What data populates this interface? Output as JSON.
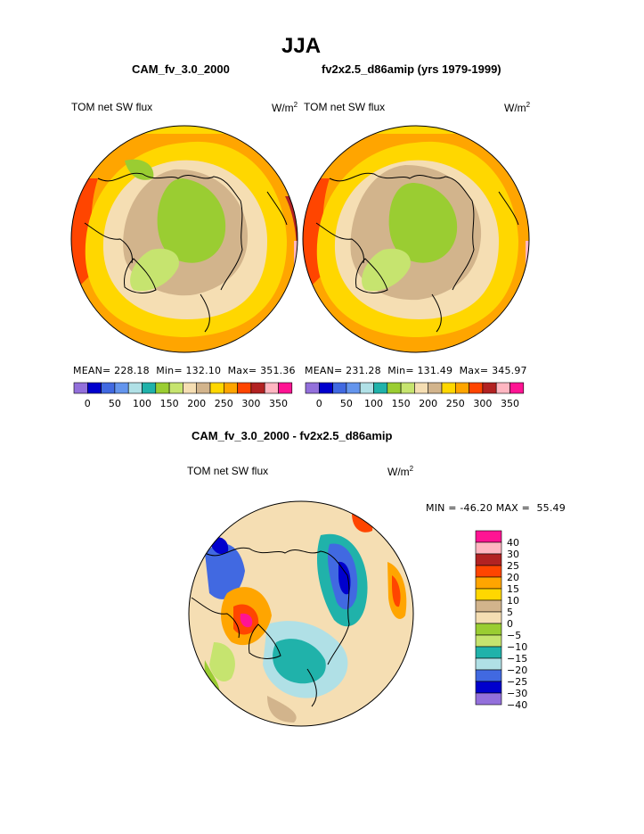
{
  "page": {
    "title": "JJA",
    "left_model": "CAM_fv_3.0_2000",
    "right_model": "fv2x2.5_d86amip (yrs 1979-1999)",
    "diff_title": "CAM_fv_3.0_2000 - fv2x2.5_d86amip"
  },
  "panels": {
    "left": {
      "field": "TOM net SW flux",
      "unit_base": "W/m",
      "unit_exp": "2",
      "mean_label": "MEAN=",
      "mean": "228.18",
      "min_label": "Min=",
      "min": "132.10",
      "max_label": "Max=",
      "max": "351.36"
    },
    "right": {
      "field": "TOM net SW flux",
      "unit_base": "W/m",
      "unit_exp": "2",
      "mean_label": "MEAN=",
      "mean": "231.28",
      "min_label": "Min=",
      "min": "131.49",
      "max_label": "Max=",
      "max": "345.97"
    },
    "diff": {
      "field": "TOM net SW flux",
      "unit_base": "W/m",
      "unit_exp": "2",
      "min_label": "MIN =",
      "min": "-46.20",
      "max_label": "MAX =",
      "max": "55.49"
    }
  },
  "chart_data": [
    {
      "type": "heatmap",
      "name": "left-map",
      "title": "CAM_fv_3.0_2000 TOM net SW flux",
      "projection": "north polar stereographic",
      "colorbar": {
        "orientation": "horizontal",
        "colors": [
          "#9370db",
          "#0000cd",
          "#4169e1",
          "#6495ed",
          "#b0e0e6",
          "#20b2aa",
          "#9acd32",
          "#c6e46f",
          "#f5deb3",
          "#d2b48c",
          "#ffd700",
          "#ffa500",
          "#ff4500",
          "#b22222",
          "#ffb6c1",
          "#ff1493"
        ],
        "tick_labels": [
          "0",
          "50",
          "100",
          "150",
          "200",
          "250",
          "300",
          "350"
        ]
      },
      "regions": [
        {
          "label": "ring-outer",
          "value": 275
        },
        {
          "label": "ring-mid",
          "value": 250
        },
        {
          "label": "ring-inner",
          "value": 215
        },
        {
          "label": "arctic-ocean",
          "value": 150
        },
        {
          "label": "greenland",
          "value": 145
        }
      ]
    },
    {
      "type": "heatmap",
      "name": "right-map",
      "title": "fv2x2.5_d86amip TOM net SW flux",
      "projection": "north polar stereographic",
      "colorbar": {
        "orientation": "horizontal",
        "colors": [
          "#9370db",
          "#0000cd",
          "#4169e1",
          "#6495ed",
          "#b0e0e6",
          "#20b2aa",
          "#9acd32",
          "#c6e46f",
          "#f5deb3",
          "#d2b48c",
          "#ffd700",
          "#ffa500",
          "#ff4500",
          "#b22222",
          "#ffb6c1",
          "#ff1493"
        ],
        "tick_labels": [
          "0",
          "50",
          "100",
          "150",
          "200",
          "250",
          "300",
          "350"
        ]
      },
      "regions": [
        {
          "label": "ring-outer",
          "value": 275
        },
        {
          "label": "ring-mid",
          "value": 250
        },
        {
          "label": "ring-inner",
          "value": 215
        },
        {
          "label": "arctic-ocean",
          "value": 150
        },
        {
          "label": "greenland",
          "value": 145
        }
      ]
    },
    {
      "type": "heatmap",
      "name": "diff-map",
      "title": "CAM_fv_3.0_2000 - fv2x2.5_d86amip TOM net SW flux",
      "projection": "north polar stereographic",
      "colorbar": {
        "orientation": "vertical",
        "colors": [
          "#ff1493",
          "#ffb6c1",
          "#b22222",
          "#ff4500",
          "#ffa500",
          "#ffd700",
          "#d2b48c",
          "#f5deb3",
          "#9acd32",
          "#c6e46f",
          "#20b2aa",
          "#b0e0e6",
          "#4169e1",
          "#0000cd",
          "#9370db"
        ],
        "tick_labels": [
          "40",
          "30",
          "25",
          "20",
          "15",
          "10",
          "5",
          "0",
          "−5",
          "−10",
          "−15",
          "−20",
          "−25",
          "−30",
          "−40"
        ]
      },
      "regions": [
        {
          "label": "background",
          "value": -2
        },
        {
          "label": "pacific-negative",
          "value": -25
        },
        {
          "label": "atlantic-negative",
          "value": -20
        },
        {
          "label": "scandinavia-positive",
          "value": 20
        },
        {
          "label": "east-atlantic-positive",
          "value": 15
        }
      ]
    }
  ]
}
